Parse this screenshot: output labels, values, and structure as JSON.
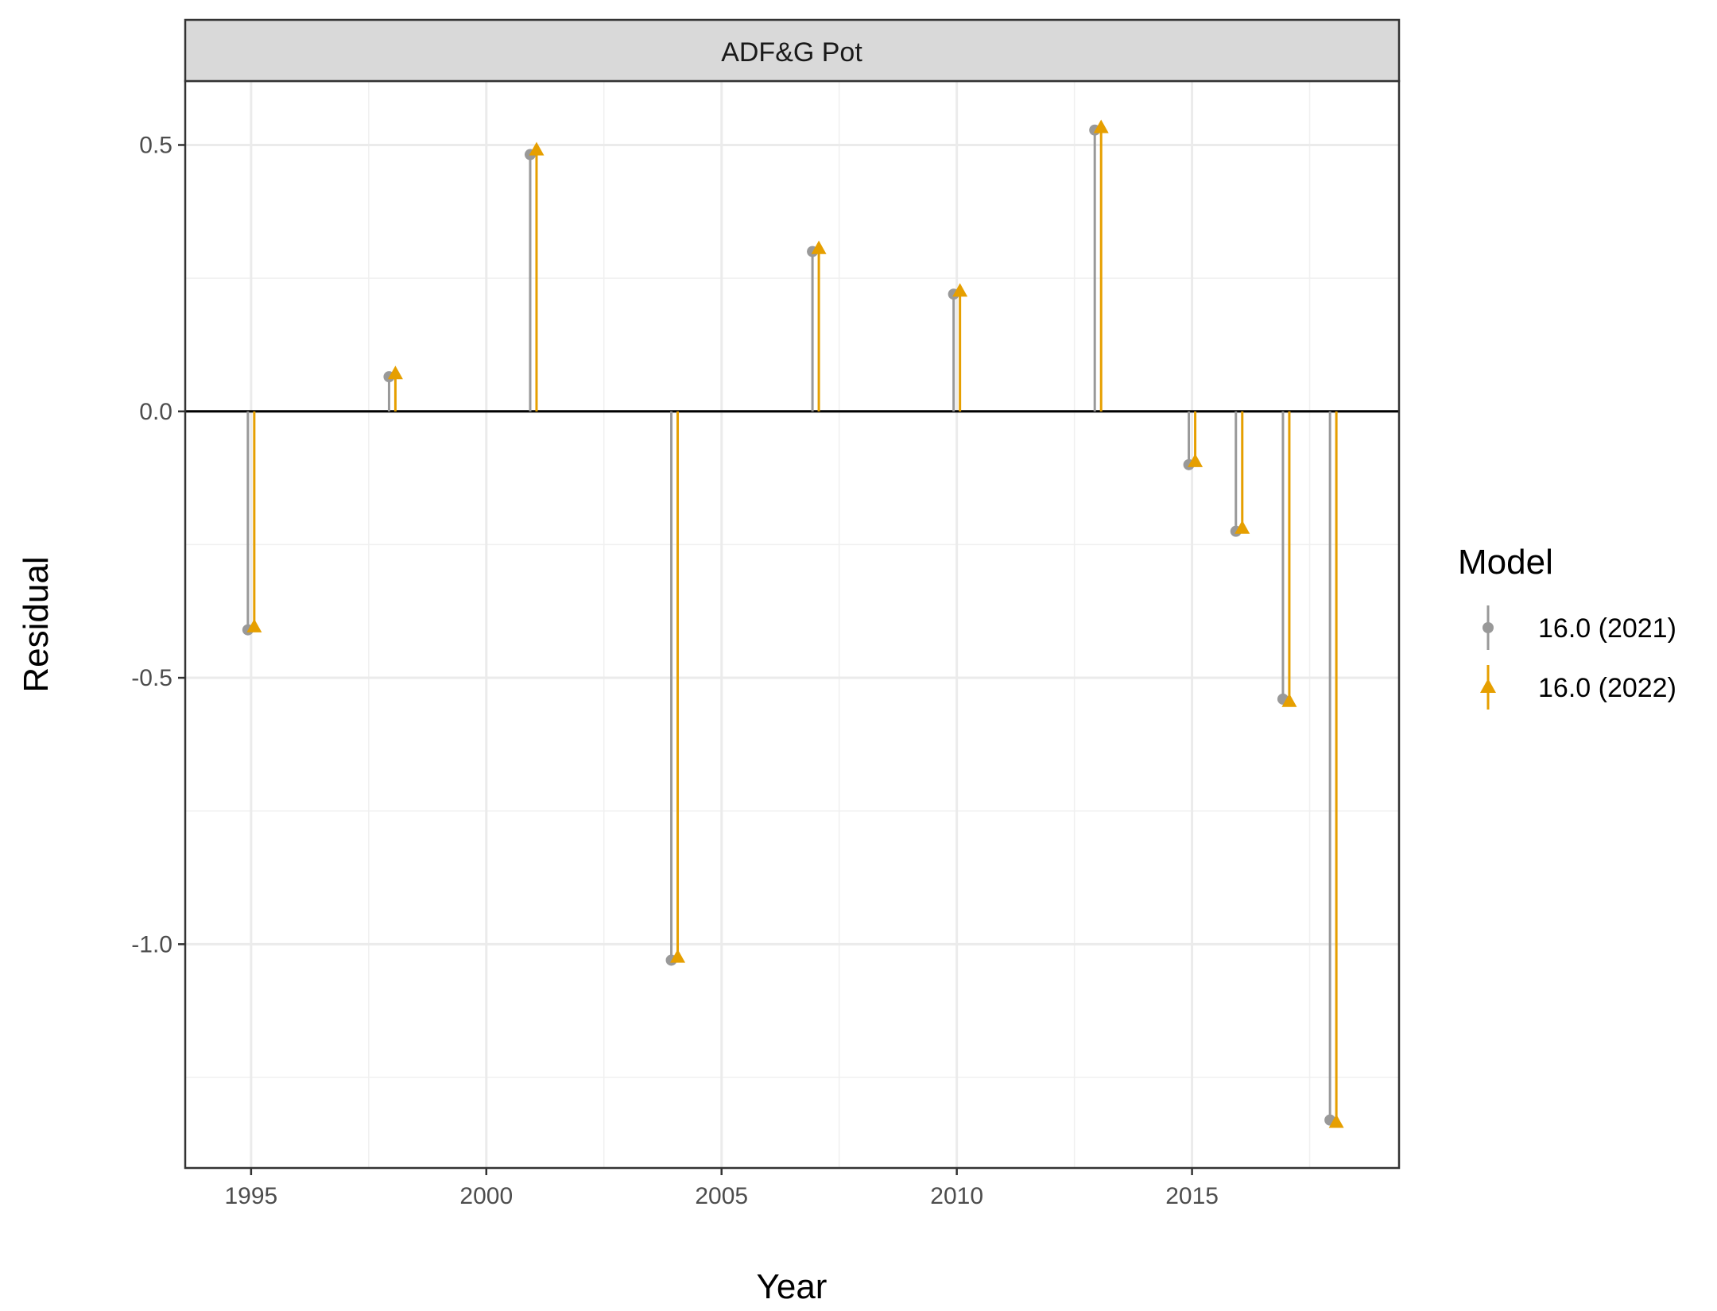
{
  "chart_data": {
    "type": "lollipop",
    "panel_title": "ADF&G Pot",
    "xlabel": "Year",
    "ylabel": "Residual",
    "xlim": [
      1993.6,
      2019.4
    ],
    "ylim": [
      -1.42,
      0.62
    ],
    "x_ticks": [
      1995,
      2000,
      2005,
      2010,
      2015
    ],
    "x_tick_labels": [
      "1995",
      "2000",
      "2005",
      "2010",
      "2015"
    ],
    "y_ticks": [
      0.5,
      0.0,
      -0.5,
      -1.0
    ],
    "y_tick_labels": [
      "0.5",
      "0.0",
      "-0.5",
      "-1.0"
    ],
    "zero_line": 0,
    "grid": true,
    "legend_title": "Model",
    "legend_position": "right",
    "x": [
      1995,
      1998,
      2001,
      2004,
      2007,
      2010,
      2013,
      2015,
      2016,
      2017,
      2018
    ],
    "series": [
      {
        "name": "16.0 (2021)",
        "color": "#999999",
        "marker": "circle",
        "values": [
          -0.41,
          0.065,
          0.482,
          -1.03,
          0.3,
          0.22,
          0.528,
          -0.1,
          -0.225,
          -0.54,
          -1.33
        ]
      },
      {
        "name": "16.0 (2022)",
        "color": "#E69F00",
        "marker": "triangle",
        "values": [
          -0.405,
          0.07,
          0.49,
          -1.025,
          0.305,
          0.225,
          0.532,
          -0.095,
          -0.22,
          -0.545,
          -1.335
        ]
      }
    ]
  }
}
